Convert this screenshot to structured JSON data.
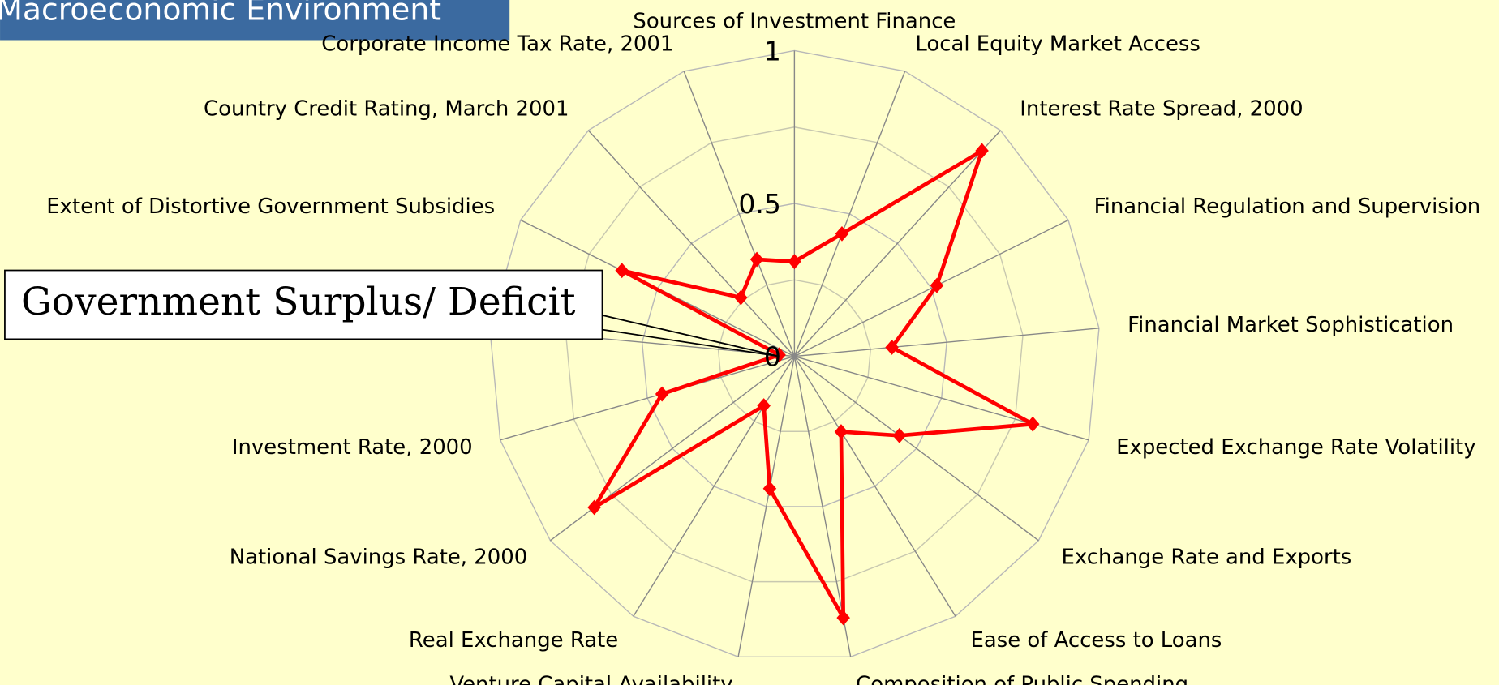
{
  "chart_data": {
    "type": "radar",
    "title": "Macroeconomic Environment",
    "annotation": "Government Surplus/ Deficit",
    "categories": [
      "Sources of Investment Finance",
      "Local Equity Market Access",
      "Interest Rate Spread, 2000",
      "Financial Regulation and Supervision",
      "Financial Market Sophistication",
      "Expected Exchange Rate Volatility",
      "Exchange Rate and Exports",
      "Ease of Access to Loans",
      "Composition of Public Spending",
      "Venture Capital Availability",
      "Real Exchange Rate",
      "National Savings Rate, 2000",
      "Investment Rate, 2000",
      null,
      "Extent of Distortive Government Subsidies",
      "Country Credit Rating, March 2001",
      "Corporate Income Tax Rate, 2001"
    ],
    "values": [
      0.31,
      0.43,
      0.91,
      0.52,
      0.32,
      0.81,
      0.43,
      0.29,
      0.87,
      0.44,
      0.19,
      0.82,
      0.45,
      0.05,
      0.63,
      0.26,
      0.34
    ],
    "color": "#ff0000",
    "ylim": [
      0,
      1
    ],
    "yticks": [
      0,
      0.5,
      1
    ],
    "minor_ticks": [
      0.25,
      0.75
    ],
    "grid": true
  }
}
